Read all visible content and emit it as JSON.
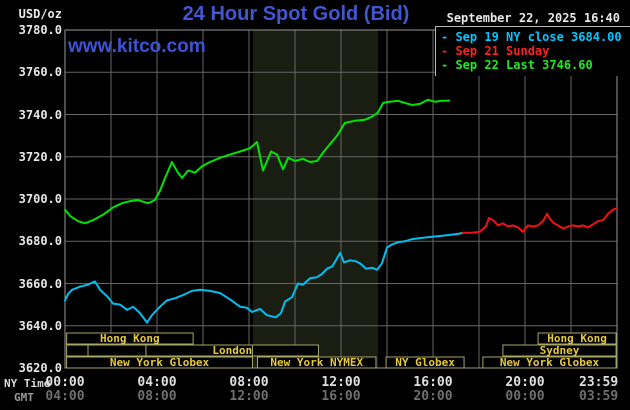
{
  "header": {
    "title": "24 Hour Spot Gold (Bid)",
    "datetime": "September 22, 2025 16:40",
    "unit_label": "USD/oz",
    "watermark": "www.kitco.com"
  },
  "legend": {
    "items": [
      {
        "marker": "-",
        "label": "Sep 19 NY close 3684.00",
        "color": "#00c8ff"
      },
      {
        "marker": "-",
        "label": "Sep 21 Sunday",
        "color": "#ff2222"
      },
      {
        "marker": "-",
        "label": "Sep 22 Last 3746.60",
        "color": "#22e822"
      }
    ]
  },
  "footer": {
    "ny_time_label": "NY Time",
    "gmt_label": "GMT"
  },
  "colors": {
    "background": "#000000",
    "grid": "#666666",
    "plot_border": "#999999",
    "band": "#191d12",
    "session_border": "#a8a863",
    "session_text": "#e6c93c",
    "title_blue": "#4156d4"
  },
  "chart_data": {
    "type": "line",
    "title": "24 Hour Spot Gold (Bid)",
    "y_axis": {
      "unit": "USD/oz",
      "min": 3620,
      "max": 3780,
      "step": 20,
      "tick_labels": [
        "3780.0",
        "3760.0",
        "3740.0",
        "3720.0",
        "3700.0",
        "3680.0",
        "3660.0",
        "3640.0",
        "3620.0"
      ],
      "tick_values": [
        3780,
        3760,
        3740,
        3720,
        3700,
        3680,
        3660,
        3640,
        3620
      ]
    },
    "x_axis": {
      "hours_range": [
        0,
        24
      ],
      "gridline_every_hours": 2,
      "ticks": [
        {
          "h": 0,
          "ny": "00:00",
          "gmt": "04:00"
        },
        {
          "h": 4,
          "ny": "04:00",
          "gmt": "08:00"
        },
        {
          "h": 8,
          "ny": "08:00",
          "gmt": "12:00"
        },
        {
          "h": 12,
          "ny": "12:00",
          "gmt": "16:00"
        },
        {
          "h": 16,
          "ny": "16:00",
          "gmt": "20:00"
        },
        {
          "h": 20,
          "ny": "20:00",
          "gmt": "00:00"
        },
        {
          "h": 23.983,
          "ny": "23:59",
          "gmt": "03:59"
        }
      ]
    },
    "highlight_band_hours": [
      8.17,
      13.61
    ],
    "series": [
      {
        "name": "Sep 19 NY close 3684.00",
        "color": "#00bfef",
        "points": [
          [
            0,
            3652
          ],
          [
            0.13,
            3655
          ],
          [
            0.3,
            3657
          ],
          [
            0.65,
            3658.5
          ],
          [
            1,
            3659.5
          ],
          [
            1.3,
            3661
          ],
          [
            1.52,
            3657
          ],
          [
            1.83,
            3654
          ],
          [
            2.09,
            3650.5
          ],
          [
            2.39,
            3650
          ],
          [
            2.7,
            3647.5
          ],
          [
            2.96,
            3649
          ],
          [
            3.26,
            3646
          ],
          [
            3.57,
            3641.5
          ],
          [
            3.78,
            3645
          ],
          [
            4.13,
            3649
          ],
          [
            4.43,
            3652
          ],
          [
            4.78,
            3653
          ],
          [
            5.13,
            3654.5
          ],
          [
            5.52,
            3656.5
          ],
          [
            5.87,
            3657
          ],
          [
            6.3,
            3656.5
          ],
          [
            6.74,
            3655.5
          ],
          [
            7.17,
            3652.5
          ],
          [
            7.61,
            3649
          ],
          [
            7.91,
            3648.5
          ],
          [
            8.13,
            3646.5
          ],
          [
            8.48,
            3648
          ],
          [
            8.78,
            3645
          ],
          [
            9.17,
            3644
          ],
          [
            9.39,
            3646
          ],
          [
            9.57,
            3651.5
          ],
          [
            9.87,
            3653.5
          ],
          [
            10.13,
            3660
          ],
          [
            10.35,
            3659.5
          ],
          [
            10.65,
            3662.5
          ],
          [
            10.96,
            3663
          ],
          [
            11.17,
            3664.5
          ],
          [
            11.39,
            3667
          ],
          [
            11.61,
            3668
          ],
          [
            11.78,
            3671
          ],
          [
            11.96,
            3674.5
          ],
          [
            12.13,
            3670
          ],
          [
            12.39,
            3671
          ],
          [
            12.65,
            3670.5
          ],
          [
            12.83,
            3669.5
          ],
          [
            13.09,
            3667
          ],
          [
            13.35,
            3667.5
          ],
          [
            13.57,
            3666.5
          ],
          [
            13.78,
            3669.5
          ],
          [
            14,
            3677
          ],
          [
            14.22,
            3678.5
          ],
          [
            14.48,
            3679.5
          ],
          [
            14.78,
            3680
          ],
          [
            15.09,
            3681
          ],
          [
            15.43,
            3681.5
          ],
          [
            15.87,
            3682
          ],
          [
            16.3,
            3682.5
          ],
          [
            16.74,
            3683
          ],
          [
            17.09,
            3683.5
          ],
          [
            17.3,
            3684
          ]
        ]
      },
      {
        "name": "Sep 21 Sunday",
        "color": "#ee1212",
        "points": [
          [
            17.3,
            3684
          ],
          [
            17.7,
            3684
          ],
          [
            18.04,
            3684.5
          ],
          [
            18.3,
            3687
          ],
          [
            18.43,
            3691
          ],
          [
            18.61,
            3690
          ],
          [
            18.83,
            3687.5
          ],
          [
            19.04,
            3688.5
          ],
          [
            19.26,
            3687
          ],
          [
            19.48,
            3687.5
          ],
          [
            19.7,
            3686.5
          ],
          [
            19.91,
            3684.5
          ],
          [
            20.13,
            3687.5
          ],
          [
            20.35,
            3687
          ],
          [
            20.57,
            3687.5
          ],
          [
            20.78,
            3689.5
          ],
          [
            20.96,
            3693
          ],
          [
            21.09,
            3690.5
          ],
          [
            21.26,
            3688.5
          ],
          [
            21.43,
            3687.5
          ],
          [
            21.65,
            3686
          ],
          [
            21.87,
            3687
          ],
          [
            22.09,
            3687.5
          ],
          [
            22.3,
            3687
          ],
          [
            22.52,
            3687.5
          ],
          [
            22.74,
            3686.5
          ],
          [
            22.96,
            3688
          ],
          [
            23.17,
            3689.5
          ],
          [
            23.39,
            3690
          ],
          [
            23.61,
            3693
          ],
          [
            23.83,
            3695
          ],
          [
            23.98,
            3695.5
          ]
        ]
      },
      {
        "name": "Sep 22 Last 3746.60",
        "color": "#00e400",
        "points": [
          [
            0,
            3695
          ],
          [
            0.22,
            3692
          ],
          [
            0.57,
            3689.5
          ],
          [
            0.87,
            3688.5
          ],
          [
            1.22,
            3690
          ],
          [
            1.65,
            3692.5
          ],
          [
            2.09,
            3696
          ],
          [
            2.48,
            3698
          ],
          [
            2.83,
            3699
          ],
          [
            3.17,
            3699.5
          ],
          [
            3.61,
            3698
          ],
          [
            3.91,
            3699.5
          ],
          [
            4.13,
            3704
          ],
          [
            4.35,
            3710
          ],
          [
            4.65,
            3717.5
          ],
          [
            4.91,
            3712.5
          ],
          [
            5.09,
            3710
          ],
          [
            5.35,
            3713.5
          ],
          [
            5.65,
            3712.5
          ],
          [
            5.96,
            3715.5
          ],
          [
            6.3,
            3717.5
          ],
          [
            6.74,
            3719.5
          ],
          [
            7.17,
            3721
          ],
          [
            7.61,
            3722.5
          ],
          [
            8.04,
            3724
          ],
          [
            8.35,
            3727
          ],
          [
            8.61,
            3713.5
          ],
          [
            8.96,
            3722.5
          ],
          [
            9.22,
            3721
          ],
          [
            9.48,
            3714
          ],
          [
            9.7,
            3719.5
          ],
          [
            10,
            3718
          ],
          [
            10.35,
            3719
          ],
          [
            10.65,
            3717.5
          ],
          [
            10.96,
            3718
          ],
          [
            11.22,
            3722
          ],
          [
            11.52,
            3726
          ],
          [
            11.83,
            3730
          ],
          [
            12.17,
            3736
          ],
          [
            12.61,
            3737
          ],
          [
            13.04,
            3737.5
          ],
          [
            13.35,
            3739
          ],
          [
            13.61,
            3741
          ],
          [
            13.83,
            3745.5
          ],
          [
            14.13,
            3746
          ],
          [
            14.48,
            3746.5
          ],
          [
            14.78,
            3745.5
          ],
          [
            15.09,
            3744.5
          ],
          [
            15.43,
            3745
          ],
          [
            15.78,
            3747
          ],
          [
            16.09,
            3746
          ],
          [
            16.39,
            3746.5
          ],
          [
            16.7,
            3746.6
          ]
        ]
      }
    ],
    "sessions": [
      {
        "row": 1,
        "start_h": 0.07,
        "end_h": 5.57,
        "label": "Hong Kong"
      },
      {
        "row": 1,
        "start_h": 20.57,
        "end_h": 23.96,
        "label": "Hong Kong"
      },
      {
        "row": 2,
        "start_h": 0.07,
        "end_h": 1.0,
        "label": ""
      },
      {
        "row": 2,
        "start_h": 1.0,
        "end_h": 3.52,
        "label": ""
      },
      {
        "row": 2,
        "start_h": 3.52,
        "end_h": 11.02,
        "label": "London"
      },
      {
        "row": 2,
        "start_h": 19.04,
        "end_h": 23.96,
        "label": "Sydney"
      },
      {
        "row": 3,
        "start_h": 0.07,
        "end_h": 8.15,
        "label": "New York Globex"
      },
      {
        "row": 3,
        "start_h": 8.37,
        "end_h": 13.52,
        "label": "New York NYMEX"
      },
      {
        "row": 3,
        "start_h": 13.96,
        "end_h": 17.35,
        "label": "NY Globex"
      },
      {
        "row": 3,
        "start_h": 18.17,
        "end_h": 23.96,
        "label": "New York Globex"
      }
    ],
    "session_dividers": [
      {
        "row": 2,
        "h": 8.15
      }
    ]
  }
}
